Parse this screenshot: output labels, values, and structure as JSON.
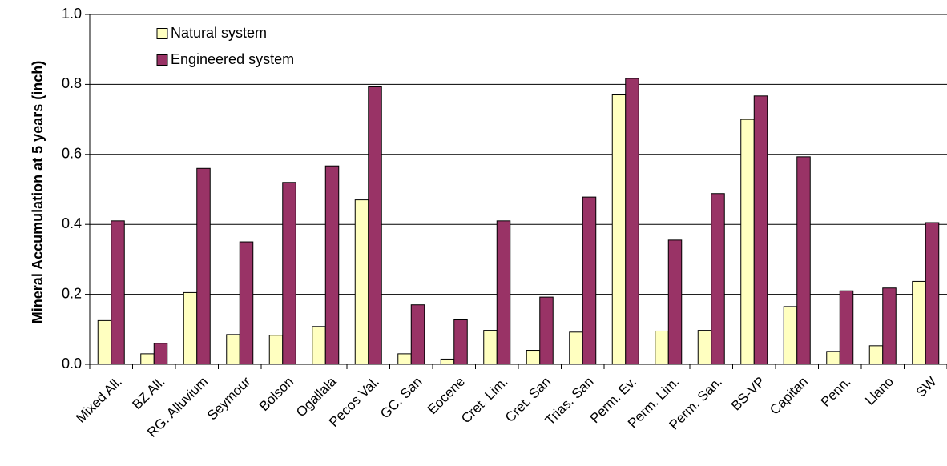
{
  "chart_data": {
    "type": "bar",
    "title": "",
    "xlabel": "",
    "ylabel": "Mineral Accumulation at 5 years (inch)",
    "ylim": [
      0,
      1.0
    ],
    "yticks": [
      "0.0",
      "0.2",
      "0.4",
      "0.6",
      "0.8",
      "1.0"
    ],
    "grid": true,
    "legend_position": "top-left",
    "categories": [
      "Mixed All.",
      "BZ All.",
      "RG. Alluvium",
      "Seymour",
      "Bolson",
      "Ogallala",
      "Pecos Val.",
      "GC. San",
      "Eocene",
      "Cret. Lim.",
      "Cret. San",
      "Trias. San",
      "Perm. Ev.",
      "Perm. Lim.",
      "Perm. San.",
      "BS-VP",
      "Capitan",
      "Penn.",
      "Llano",
      "SW"
    ],
    "series": [
      {
        "name": "Natural system",
        "color": "#ffffc0",
        "values": [
          0.125,
          0.03,
          0.205,
          0.085,
          0.083,
          0.108,
          0.47,
          0.03,
          0.015,
          0.097,
          0.04,
          0.092,
          0.77,
          0.095,
          0.097,
          0.7,
          0.165,
          0.037,
          0.053,
          0.237
        ]
      },
      {
        "name": "Engineered system",
        "color": "#993366",
        "values": [
          0.41,
          0.06,
          0.56,
          0.35,
          0.52,
          0.567,
          0.793,
          0.17,
          0.127,
          0.41,
          0.192,
          0.478,
          0.817,
          0.355,
          0.488,
          0.767,
          0.593,
          0.21,
          0.218,
          0.405
        ]
      }
    ]
  }
}
